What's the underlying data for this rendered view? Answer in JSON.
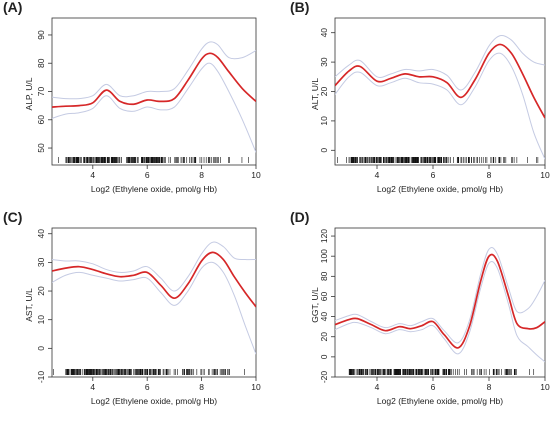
{
  "chart_data": [
    {
      "panel": "(A)",
      "type": "line",
      "xlabel": "Log2 (Ethylene oxide, pmol/g Hb)",
      "ylabel": "ALP, U/L",
      "xlim": [
        2.5,
        10
      ],
      "ylim": [
        44,
        96
      ],
      "xticks": [
        4,
        6,
        8,
        10
      ],
      "yticks": [
        50,
        60,
        70,
        80,
        90
      ],
      "series": [
        {
          "role": "estimate",
          "color": "#d62728",
          "x": [
            2.5,
            3.0,
            3.5,
            4.0,
            4.5,
            5.0,
            5.5,
            6.0,
            6.5,
            7.0,
            7.5,
            8.0,
            8.3,
            8.6,
            9.0,
            9.5,
            10.0
          ],
          "y": [
            64.5,
            64.8,
            65.0,
            66.0,
            70.5,
            66.5,
            65.5,
            67.0,
            66.5,
            67.5,
            74.0,
            81.5,
            83.5,
            82.0,
            77.0,
            71.0,
            66.5
          ]
        },
        {
          "role": "upper",
          "color": "#c5cbe3",
          "x": [
            2.5,
            3.0,
            3.5,
            4.0,
            4.5,
            5.0,
            5.5,
            6.0,
            6.5,
            7.0,
            7.5,
            8.0,
            8.3,
            8.6,
            9.0,
            9.5,
            10.0
          ],
          "y": [
            68.0,
            67.5,
            67.5,
            68.5,
            72.5,
            68.5,
            68.5,
            70.0,
            70.0,
            71.0,
            77.5,
            85.0,
            87.5,
            86.5,
            82.0,
            82.0,
            84.5
          ]
        },
        {
          "role": "lower",
          "color": "#c5cbe3",
          "x": [
            2.5,
            3.0,
            3.5,
            4.0,
            4.5,
            5.0,
            5.5,
            6.0,
            6.5,
            7.0,
            7.5,
            8.0,
            8.3,
            8.6,
            9.0,
            9.5,
            10.0
          ],
          "y": [
            60.5,
            62.0,
            62.5,
            64.0,
            68.5,
            64.0,
            63.0,
            64.5,
            63.5,
            64.5,
            71.0,
            78.0,
            80.0,
            77.0,
            70.0,
            60.0,
            48.5
          ]
        }
      ]
    },
    {
      "panel": "(B)",
      "type": "line",
      "xlabel": "Log2 (Ethylene oxide, pmol/g Hb)",
      "ylabel": "ALT, U/L",
      "xlim": [
        2.5,
        10
      ],
      "ylim": [
        -5,
        45
      ],
      "xticks": [
        4,
        6,
        8,
        10
      ],
      "yticks": [
        0,
        10,
        20,
        30,
        40
      ],
      "series": [
        {
          "role": "estimate",
          "color": "#d62728",
          "x": [
            2.5,
            3.0,
            3.4,
            4.0,
            4.5,
            5.0,
            5.5,
            6.0,
            6.5,
            7.0,
            7.5,
            8.0,
            8.4,
            8.8,
            9.2,
            9.6,
            10.0
          ],
          "y": [
            22.0,
            27.0,
            28.5,
            23.5,
            24.5,
            26.0,
            25.0,
            25.0,
            23.0,
            18.0,
            24.0,
            33.0,
            36.0,
            33.0,
            26.0,
            18.0,
            11.0
          ]
        },
        {
          "role": "upper",
          "color": "#c5cbe3",
          "x": [
            2.5,
            3.0,
            3.4,
            4.0,
            4.5,
            5.0,
            5.5,
            6.0,
            6.5,
            7.0,
            7.5,
            8.0,
            8.4,
            8.8,
            9.2,
            9.6,
            10.0
          ],
          "y": [
            25.0,
            29.0,
            30.5,
            25.0,
            26.0,
            27.5,
            27.0,
            27.5,
            25.5,
            20.5,
            26.5,
            35.5,
            39.0,
            37.5,
            33.0,
            30.0,
            29.0
          ]
        },
        {
          "role": "lower",
          "color": "#c5cbe3",
          "x": [
            2.5,
            3.0,
            3.4,
            4.0,
            4.5,
            5.0,
            5.5,
            6.0,
            6.5,
            7.0,
            7.5,
            8.0,
            8.4,
            8.8,
            9.2,
            9.6,
            10.0
          ],
          "y": [
            19.0,
            25.0,
            26.5,
            22.0,
            23.0,
            24.5,
            23.0,
            22.5,
            20.5,
            15.5,
            21.5,
            30.5,
            33.0,
            28.5,
            19.0,
            6.0,
            -3.0
          ]
        }
      ]
    },
    {
      "panel": "(C)",
      "type": "line",
      "xlabel": "Log2 (Ethylene oxide, pmol/g Hb)",
      "ylabel": "AST, U/L",
      "xlim": [
        2.5,
        10
      ],
      "ylim": [
        -10,
        42
      ],
      "xticks": [
        4,
        6,
        8,
        10
      ],
      "yticks": [
        -10,
        0,
        10,
        20,
        30,
        40
      ],
      "series": [
        {
          "role": "estimate",
          "color": "#d62728",
          "x": [
            2.5,
            3.0,
            3.5,
            4.0,
            4.5,
            5.0,
            5.5,
            6.0,
            6.5,
            7.0,
            7.5,
            8.0,
            8.4,
            8.8,
            9.2,
            9.6,
            10.0
          ],
          "y": [
            27.0,
            28.0,
            28.5,
            27.5,
            26.0,
            25.0,
            25.5,
            26.5,
            22.0,
            17.5,
            22.5,
            30.5,
            33.5,
            31.0,
            25.0,
            19.5,
            14.5
          ]
        },
        {
          "role": "upper",
          "color": "#c5cbe3",
          "x": [
            2.5,
            3.0,
            3.5,
            4.0,
            4.5,
            5.0,
            5.5,
            6.0,
            6.5,
            7.0,
            7.5,
            8.0,
            8.4,
            8.8,
            9.2,
            9.6,
            10.0
          ],
          "y": [
            31.0,
            30.5,
            30.5,
            29.5,
            27.5,
            26.5,
            27.0,
            28.5,
            24.5,
            20.0,
            25.0,
            33.0,
            37.0,
            35.5,
            31.5,
            31.0,
            31.0
          ]
        },
        {
          "role": "lower",
          "color": "#c5cbe3",
          "x": [
            2.5,
            3.0,
            3.5,
            4.0,
            4.5,
            5.0,
            5.5,
            6.0,
            6.5,
            7.0,
            7.5,
            8.0,
            8.4,
            8.8,
            9.2,
            9.6,
            10.0
          ],
          "y": [
            23.0,
            25.5,
            26.5,
            25.5,
            24.5,
            23.5,
            24.0,
            24.5,
            19.5,
            15.0,
            20.0,
            28.0,
            30.0,
            26.5,
            18.5,
            8.0,
            -2.0
          ]
        }
      ]
    },
    {
      "panel": "(D)",
      "type": "line",
      "xlabel": "Log2 (Ethylene oxide, pmol/g Hb)",
      "ylabel": "GGT, U/L",
      "xlim": [
        2.5,
        10
      ],
      "ylim": [
        -20,
        128
      ],
      "xticks": [
        4,
        6,
        8,
        10
      ],
      "yticks": [
        -20,
        0,
        20,
        40,
        60,
        80,
        100,
        120
      ],
      "series": [
        {
          "role": "estimate",
          "color": "#d62728",
          "x": [
            2.5,
            3.0,
            3.3,
            3.8,
            4.3,
            4.8,
            5.2,
            5.6,
            6.0,
            6.4,
            6.9,
            7.3,
            7.7,
            8.0,
            8.3,
            8.7,
            9.0,
            9.4,
            9.7,
            10.0
          ],
          "y": [
            32,
            37,
            38,
            32,
            26,
            30,
            28,
            31,
            35,
            22,
            9,
            30,
            75,
            100,
            95,
            60,
            33,
            28,
            29,
            35
          ]
        },
        {
          "role": "upper",
          "color": "#c5cbe3",
          "x": [
            2.5,
            3.0,
            3.3,
            3.8,
            4.3,
            4.8,
            5.2,
            5.6,
            6.0,
            6.4,
            6.9,
            7.3,
            7.7,
            8.0,
            8.3,
            8.7,
            9.0,
            9.4,
            9.7,
            10.0
          ],
          "y": [
            36,
            41,
            42,
            35,
            29,
            33,
            31,
            35,
            38,
            26,
            14,
            36,
            82,
            107,
            102,
            68,
            45,
            48,
            60,
            76
          ]
        },
        {
          "role": "lower",
          "color": "#c5cbe3",
          "x": [
            2.5,
            3.0,
            3.3,
            3.8,
            4.3,
            4.8,
            5.2,
            5.6,
            6.0,
            6.4,
            6.9,
            7.3,
            7.7,
            8.0,
            8.3,
            8.7,
            9.0,
            9.4,
            9.7,
            10.0
          ],
          "y": [
            27,
            33,
            34,
            29,
            23,
            27,
            25,
            27,
            31,
            18,
            3,
            24,
            68,
            93,
            88,
            52,
            21,
            10,
            2,
            -5
          ]
        }
      ]
    }
  ]
}
